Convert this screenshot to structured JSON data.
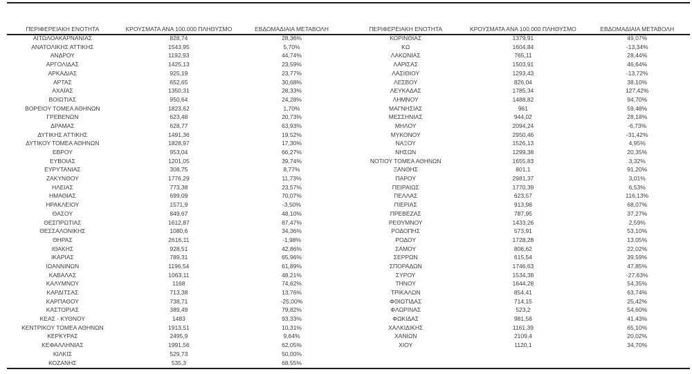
{
  "colors": {
    "text": "#3b3b3b",
    "rule_line": "#1a1a1a",
    "background": "#ffffff"
  },
  "chart_data": {
    "type": "table",
    "columns": [
      "ΠΕΡΙΦΕΡΕΙΑΚΗ ΕΝΟΤΗΤΑ",
      "ΚΡΟΥΣΜΑΤΑ ΑΝΑ 100.000 ΠΛΗΘΥΣΜΟ",
      "ΕΒΔΟΜΑΔΙΑΙΑ ΜΕΤΑΒΟΛΗ"
    ],
    "left_rows": [
      [
        "ΑΙΤΩΛΟΑΚΑΡΝΑΝΙΑΣ",
        "828,74",
        "28,36%"
      ],
      [
        "ΑΝΑΤΟΛΙΚΗΣ ΑΤΤΙΚΗΣ",
        "1543,95",
        "5,70%"
      ],
      [
        "ΑΝΔΡΟΥ",
        "1192,93",
        "44,74%"
      ],
      [
        "ΑΡΓΟΛΙΔΑΣ",
        "1425,13",
        "23,59%"
      ],
      [
        "ΑΡΚΑΔΙΑΣ",
        "925,19",
        "23,77%"
      ],
      [
        "ΑΡΤΑΣ",
        "652,65",
        "30,68%"
      ],
      [
        "ΑΧΑΪΑΣ",
        "1350,31",
        "28,33%"
      ],
      [
        "ΒΟΙΩΤΙΑΣ",
        "950,64",
        "24,28%"
      ],
      [
        "ΒΟΡΕΙΟΥ ΤΟΜΕΑ ΑΘΗΝΩΝ",
        "1823,62",
        "1,70%"
      ],
      [
        "ΓΡΕΒΕΝΩΝ",
        "623,48",
        "20,73%"
      ],
      [
        "ΔΡΑΜΑΣ",
        "628,77",
        "63,93%"
      ],
      [
        "ΔΥΤΙΚΗΣ ΑΤΤΙΚΗΣ",
        "1491,36",
        "19,52%"
      ],
      [
        "ΔΥΤΙΚΟΥ ΤΟΜΕΑ ΑΘΗΝΩΝ",
        "1828,97",
        "17,30%"
      ],
      [
        "ΕΒΡΟΥ",
        "953,04",
        "66,27%"
      ],
      [
        "ΕΥΒΟΙΑΣ",
        "1201,05",
        "39,74%"
      ],
      [
        "ΕΥΡΥΤΑΝΙΑΣ",
        "308,75",
        "8,77%"
      ],
      [
        "ΖΑΚΥΝΘΟΥ",
        "1776,29",
        "11,73%"
      ],
      [
        "ΗΛΕΙΑΣ",
        "773,38",
        "23,57%"
      ],
      [
        "ΗΜΑΘΙΑΣ",
        "699,09",
        "70,07%"
      ],
      [
        "ΗΡΑΚΛΕΙΟΥ",
        "1571,9",
        "-3,50%"
      ],
      [
        "ΘΑΣΟΥ",
        "849,67",
        "48,10%"
      ],
      [
        "ΘΕΣΠΡΩΤΙΑΣ",
        "1612,87",
        "87,47%"
      ],
      [
        "ΘΕΣΣΑΛΟΝΙΚΗΣ",
        "1080,6",
        "34,36%"
      ],
      [
        "ΘΗΡΑΣ",
        "2616,11",
        "-1,98%"
      ],
      [
        "ΙΘΑΚΗΣ",
        "928,51",
        "42,86%"
      ],
      [
        "ΙΚΑΡΙΑΣ",
        "789,31",
        "65,96%"
      ],
      [
        "ΙΩΑΝΝΙΝΩΝ",
        "1196,54",
        "61,89%"
      ],
      [
        "ΚΑΒΑΛΑΣ",
        "1063,11",
        "48,21%"
      ],
      [
        "ΚΑΛΥΜΝΟΥ",
        "1168",
        "74,62%"
      ],
      [
        "ΚΑΡΔΙΤΣΑΣ",
        "713,38",
        "13,76%"
      ],
      [
        "ΚΑΡΠΑΘΟΥ",
        "738,71",
        "-25,00%"
      ],
      [
        "ΚΑΣΤΟΡΙΑΣ",
        "389,49",
        "79,82%"
      ],
      [
        "ΚΕΑΣ - ΚΥΘΝΟΥ",
        "1483",
        "93,33%"
      ],
      [
        "ΚΕΝΤΡΙΚΟΥ ΤΟΜΕΑ ΑΘΗΝΩΝ",
        "1913,51",
        "10,31%"
      ],
      [
        "ΚΕΡΚΥΡΑΣ",
        "2495,9",
        "9,64%"
      ],
      [
        "ΚΕΦΑΛΛΗΝΙΑΣ",
        "1991,56",
        "62,05%"
      ],
      [
        "ΚΙΛΚΙΣ",
        "529,73",
        "50,00%"
      ],
      [
        "ΚΟΖΑΝΗΣ",
        "535,3",
        "68,55%"
      ]
    ],
    "right_rows": [
      [
        "ΚΟΡΙΝΘΙΑΣ",
        "1379,91",
        "49,07%"
      ],
      [
        "ΚΩ",
        "1604,84",
        "-13,34%"
      ],
      [
        "ΛΑΚΩΝΙΑΣ",
        "765,11",
        "28,44%"
      ],
      [
        "ΛΑΡΙΣΑΣ",
        "1503,91",
        "46,64%"
      ],
      [
        "ΛΑΣΙΘΙΟΥ",
        "1293,43",
        "-13,72%"
      ],
      [
        "ΛΕΣΒΟΥ",
        "826,04",
        "38,10%"
      ],
      [
        "ΛΕΥΚΑΔΑΣ",
        "1785,34",
        "127,42%"
      ],
      [
        "ΛΗΜΝΟΥ",
        "1488,82",
        "94,70%"
      ],
      [
        "ΜΑΓΝΗΣΙΑΣ",
        "961",
        "59,48%"
      ],
      [
        "ΜΕΣΣΗΝΙΑΣ",
        "944,02",
        "28,18%"
      ],
      [
        "ΜΗΛΟΥ",
        "2094,24",
        "-6,73%"
      ],
      [
        "ΜΥΚΟΝΟΥ",
        "2950,46",
        "-31,42%"
      ],
      [
        "ΝΑΞΟΥ",
        "1526,13",
        "4,95%"
      ],
      [
        "ΝΗΣΩΝ",
        "1299,38",
        "20,35%"
      ],
      [
        "ΝΟΤΙΟΥ ΤΟΜΕΑ ΑΘΗΝΩΝ",
        "1655,83",
        "3,32%"
      ],
      [
        "ΞΑΝΘΗΣ",
        "801,1",
        "91,20%"
      ],
      [
        "ΠΑΡΟΥ",
        "2981,37",
        "3,01%"
      ],
      [
        "ΠΕΙΡΑΙΩΣ",
        "1770,39",
        "6,53%"
      ],
      [
        "ΠΕΛΛΑΣ",
        "623,57",
        "116,13%"
      ],
      [
        "ΠΙΕΡΙΑΣ",
        "913,98",
        "68,07%"
      ],
      [
        "ΠΡΕΒΕΖΑΣ",
        "787,95",
        "37,27%"
      ],
      [
        "ΡΕΘΥΜΝΟΥ",
        "1433,26",
        "2,59%"
      ],
      [
        "ΡΟΔΟΠΗΣ",
        "573,91",
        "53,10%"
      ],
      [
        "ΡΟΔΟΥ",
        "1728,28",
        "13,05%"
      ],
      [
        "ΣΑΜΟΥ",
        "806,62",
        "22,02%"
      ],
      [
        "ΣΕΡΡΩΝ",
        "615,54",
        "39,59%"
      ],
      [
        "ΣΠΟΡΑΔΩΝ",
        "1746,63",
        "47,85%"
      ],
      [
        "ΣΥΡΟΥ",
        "1534,38",
        "-27,63%"
      ],
      [
        "ΤΗΝΟΥ",
        "1644,28",
        "54,35%"
      ],
      [
        "ΤΡΙΚΑΛΩΝ",
        "854,41",
        "63,74%"
      ],
      [
        "ΦΘΙΩΤΙΔΑΣ",
        "714,15",
        "25,42%"
      ],
      [
        "ΦΛΩΡΙΝΑΣ",
        "523,2",
        "54,60%"
      ],
      [
        "ΦΩΚΙΔΑΣ",
        "981,58",
        "41,43%"
      ],
      [
        "ΧΑΛΚΙΔΙΚΗΣ",
        "1161,39",
        "65,10%"
      ],
      [
        "ΧΑΝΙΩΝ",
        "2109,4",
        "20,02%"
      ],
      [
        "ΧΙΟΥ",
        "1120,1",
        "34,70%"
      ]
    ]
  }
}
